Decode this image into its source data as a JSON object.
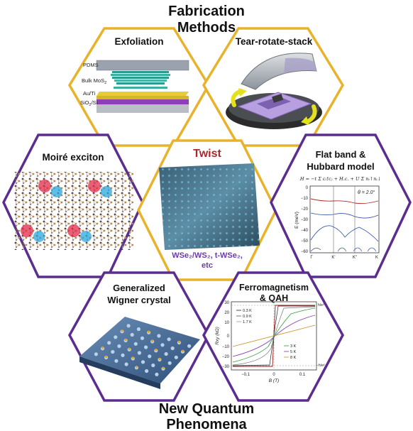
{
  "header": {
    "line1": "Fabrication",
    "line2": "Methods"
  },
  "footer": {
    "line1": "New Quantum",
    "line2": "Phenomena"
  },
  "colors": {
    "gold": "#e8b22a",
    "purple": "#5b2d8e",
    "red": "#a52a2a"
  },
  "panels": {
    "exfoliation": {
      "title": "Exfoliation",
      "labels": {
        "pdms": "PDMS",
        "bulk": "Bulk MoS",
        "bulk_sub": "2",
        "auti": "Au/Ti",
        "sio2": "SiO",
        "sio2_sub": "2",
        "sio2_tail": "/Si"
      }
    },
    "tear": {
      "title": "Tear-rotate-stack"
    },
    "moire": {
      "title": "Moiré exciton"
    },
    "twist": {
      "title": "Twist",
      "sub_line1": "WSe₂/WS₂, t-WSe₂,",
      "sub_line2": "etc"
    },
    "flat": {
      "title_line1": "Flat band &",
      "title_line2": "Hubbard model",
      "equation": "H = −t Σ cᵢ†cⱼ + H.c. + U Σ nᵢ↑nᵢ↓",
      "angle": "θ = 2.0°",
      "ylabel": "E (meV)",
      "yticks": [
        "0",
        "−10",
        "−20",
        "−30",
        "−40",
        "−50",
        "−60"
      ],
      "xticks": [
        "Γ",
        "K'",
        "K''",
        "K"
      ]
    },
    "wigner": {
      "title_line1": "Generalized",
      "title_line2": "Wigner crystal"
    },
    "ferro": {
      "title_line1": "Ferromagnetism",
      "title_line2": "& QAH",
      "ylabel": "Rxy (kΩ)",
      "xlabel": "B (T)",
      "yticks": [
        "30",
        "20",
        "10",
        "0",
        "−10",
        "−20",
        "−30"
      ],
      "xticks": [
        "−0.1",
        "0",
        "0.1"
      ],
      "ann_top": "h/e²",
      "ann_bottom": "−h/e²",
      "legend_left": [
        "0.3 K",
        "0.9 K",
        "1.7 K"
      ],
      "legend_right": [
        "3 K",
        "5 K",
        "8 K"
      ]
    }
  }
}
